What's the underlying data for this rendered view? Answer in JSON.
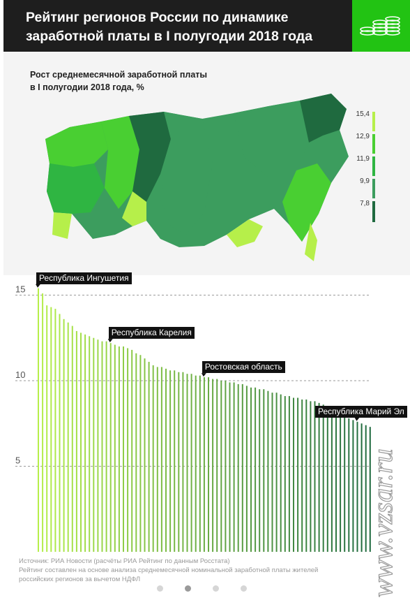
{
  "header": {
    "title_line1": "Рейтинг регионов России по динамике",
    "title_line2": "заработной платы в I полугодии 2018 года",
    "logo_icon": "coin-stacks-icon"
  },
  "subtitle": {
    "line1": "Рост среднемесячной заработной платы",
    "line2": "в I полугодии 2018 года, %"
  },
  "legend": {
    "items": [
      {
        "label": "15,4",
        "color": "#b6ef4a"
      },
      {
        "label": "12,9",
        "color": "#49cf32"
      },
      {
        "label": "11,9",
        "color": "#2fb542"
      },
      {
        "label": "9,9",
        "color": "#3c9d5e"
      },
      {
        "label": "7,8",
        "color": "#1f6a3f"
      }
    ]
  },
  "chart_data": {
    "type": "bar",
    "ylim": [
      0,
      16
    ],
    "yticks": [
      "15",
      "10",
      "5"
    ],
    "grid": "dashed horizontal lines at 15, 10, 5",
    "values": [
      15.4,
      15.1,
      14.4,
      14.3,
      14.2,
      13.9,
      13.6,
      13.4,
      13.2,
      12.9,
      12.8,
      12.7,
      12.6,
      12.5,
      12.4,
      12.3,
      12.3,
      12.2,
      12.1,
      12.0,
      12.0,
      11.9,
      11.8,
      11.6,
      11.5,
      11.3,
      11.1,
      10.9,
      10.8,
      10.8,
      10.7,
      10.6,
      10.6,
      10.5,
      10.5,
      10.4,
      10.4,
      10.3,
      10.3,
      10.2,
      10.2,
      10.1,
      10.1,
      10.0,
      10.0,
      9.9,
      9.9,
      9.8,
      9.8,
      9.7,
      9.6,
      9.6,
      9.5,
      9.5,
      9.4,
      9.3,
      9.3,
      9.2,
      9.1,
      9.1,
      9.0,
      9.0,
      8.9,
      8.9,
      8.8,
      8.8,
      8.7,
      8.6,
      8.5,
      8.4,
      8.3,
      8.1,
      7.9,
      7.8,
      7.7,
      7.6,
      7.5,
      7.4,
      7.3
    ],
    "annotations": [
      {
        "label": "Республика Ингушетия",
        "index": 0
      },
      {
        "label": "Республика Карелия",
        "index": 17
      },
      {
        "label": "Ростовская область",
        "index": 39
      },
      {
        "label": "Республика Марий Эл",
        "index": 75
      }
    ],
    "color_high": "#b6ef4a",
    "color_low": "#1f6a3f"
  },
  "source": {
    "line1": "Источник: РИА Новости (расчёты РИА Рейтинг по данным Росстата)",
    "line2": "Рейтинг составлен на основе анализа среднемесячной номинальной заработной платы жителей",
    "line3": "российских регионов за вычетом НДФЛ"
  },
  "pager": {
    "count": 4,
    "active": 1
  },
  "watermark": {
    "text": "www.vzsar.ru"
  }
}
